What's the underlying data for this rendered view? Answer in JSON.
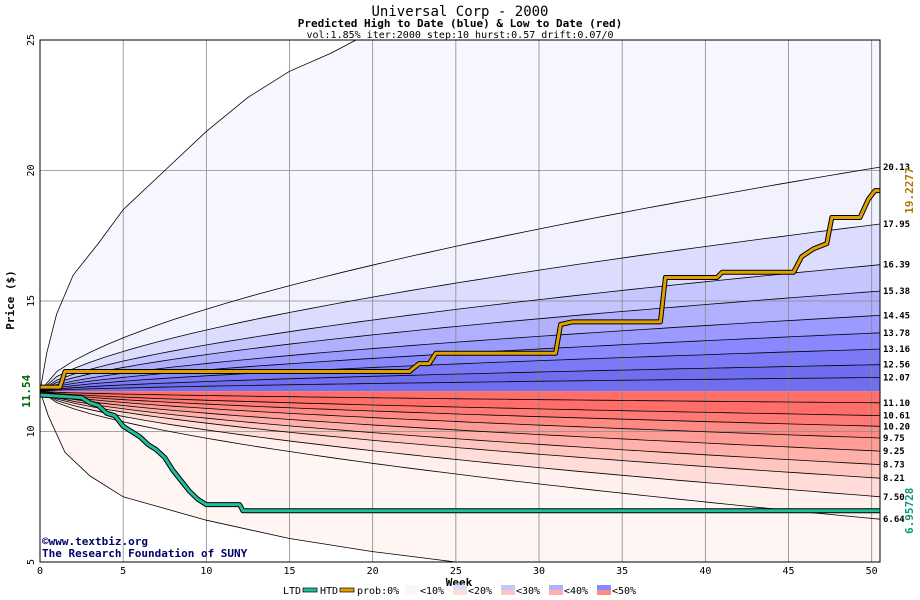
{
  "chart_data": {
    "type": "area",
    "title": "Universal Corp - 2000",
    "subtitle": "Predicted High to Date (blue) &  Low to Date (red)",
    "params": "vol:1.85% iter:2000 step:10 hurst:0.57 drift:0.07/0",
    "xlabel": "Week",
    "ylabel": "Price ($)",
    "xlim": [
      0,
      50.5
    ],
    "ylim": [
      5,
      25
    ],
    "x_ticks": [
      "0",
      "5",
      "10",
      "15",
      "20",
      "25",
      "30",
      "35",
      "40",
      "45",
      "50"
    ],
    "y_ticks": [
      "5",
      "10",
      "15",
      "20",
      "25"
    ],
    "start_price": 11.54,
    "start_label": "11.54",
    "grid": true,
    "band_end_values": [
      20.13,
      17.95,
      16.39,
      15.38,
      14.45,
      13.78,
      13.16,
      12.56,
      12.07,
      11.1,
      10.61,
      10.2,
      9.75,
      9.25,
      8.73,
      8.21,
      7.5,
      6.64
    ],
    "band_end_labels": [
      "20.13",
      "17.95",
      "16.39",
      "15.38",
      "14.45",
      "13.78",
      "13.16",
      "12.56",
      "12.07",
      "11.10",
      "10.61",
      "10.20",
      "9.75",
      "9.25",
      "8.73",
      "8.21",
      "7.50",
      "6.64"
    ],
    "high_to_date": {
      "name": "HTD",
      "final_label": "19.2277",
      "color": "#e0a000",
      "points": [
        [
          0,
          11.7
        ],
        [
          1.2,
          11.7
        ],
        [
          1.5,
          12.3
        ],
        [
          22.2,
          12.3
        ],
        [
          22.8,
          12.6
        ],
        [
          23.4,
          12.6
        ],
        [
          23.8,
          13.0
        ],
        [
          31,
          13.0
        ],
        [
          31.3,
          14.1
        ],
        [
          32,
          14.2
        ],
        [
          37.3,
          14.2
        ],
        [
          37.6,
          15.9
        ],
        [
          40.7,
          15.9
        ],
        [
          41,
          16.1
        ],
        [
          45.3,
          16.1
        ],
        [
          45.8,
          16.7
        ],
        [
          46.5,
          17.0
        ],
        [
          47.3,
          17.2
        ],
        [
          47.6,
          18.2
        ],
        [
          49.3,
          18.2
        ],
        [
          49.8,
          18.9
        ],
        [
          50.2,
          19.23
        ],
        [
          50.5,
          19.23
        ]
      ]
    },
    "low_to_date": {
      "name": "LTD",
      "final_label": "6.95728",
      "color": "#1dbf9b",
      "points": [
        [
          0,
          11.4
        ],
        [
          2.5,
          11.3
        ],
        [
          3.0,
          11.1
        ],
        [
          3.5,
          11.0
        ],
        [
          4.0,
          10.7
        ],
        [
          4.5,
          10.6
        ],
        [
          5.0,
          10.2
        ],
        [
          5.5,
          10.0
        ],
        [
          6.0,
          9.8
        ],
        [
          6.5,
          9.5
        ],
        [
          7.0,
          9.3
        ],
        [
          7.5,
          9.0
        ],
        [
          8.0,
          8.5
        ],
        [
          8.5,
          8.1
        ],
        [
          9.0,
          7.7
        ],
        [
          9.5,
          7.4
        ],
        [
          10,
          7.2
        ],
        [
          12.0,
          7.2
        ],
        [
          12.2,
          6.96
        ],
        [
          50.5,
          6.96
        ]
      ]
    },
    "outer_upper": [
      [
        0,
        11.54
      ],
      [
        0.4,
        13
      ],
      [
        1,
        14.5
      ],
      [
        2,
        16.0
      ],
      [
        3.5,
        17.2
      ],
      [
        5,
        18.5
      ],
      [
        7.5,
        20
      ],
      [
        10,
        21.5
      ],
      [
        12.5,
        22.8
      ],
      [
        15,
        23.8
      ],
      [
        17.5,
        24.5
      ],
      [
        19,
        25
      ]
    ],
    "outer_lower": [
      [
        0,
        11.54
      ],
      [
        0.5,
        10.6
      ],
      [
        1.5,
        9.2
      ],
      [
        3,
        8.3
      ],
      [
        5,
        7.5
      ],
      [
        10,
        6.6
      ],
      [
        15,
        5.9
      ],
      [
        20,
        5.4
      ],
      [
        25,
        5.0
      ]
    ],
    "legend": {
      "ltd": "LTD",
      "htd": "HTD",
      "prob_prefix": "prob:0%",
      "items": [
        "<10%",
        "<20%",
        "<30%",
        "<40%",
        "<50%"
      ]
    },
    "colors": {
      "blue_bands": [
        "#f2f2ff",
        "#dcdcff",
        "#c6c6ff",
        "#b0b0ff",
        "#9a9aff",
        "#8888ff",
        "#7a7af6",
        "#6e6eef"
      ],
      "red_bands": [
        "#fff0ee",
        "#ffdcd8",
        "#ffc6c0",
        "#ffb0aa",
        "#ff9c96",
        "#ff8a84",
        "#ff7a74",
        "#ff6e68"
      ],
      "outer_blue": "#f7f7ff",
      "outer_red": "#fff5f3",
      "grid": "#888888",
      "axis": "#000000",
      "credit": "#000066",
      "start_label": "#006600"
    }
  },
  "credits": {
    "site": "©www.textbiz.org",
    "org": "The Research Foundation of SUNY"
  }
}
